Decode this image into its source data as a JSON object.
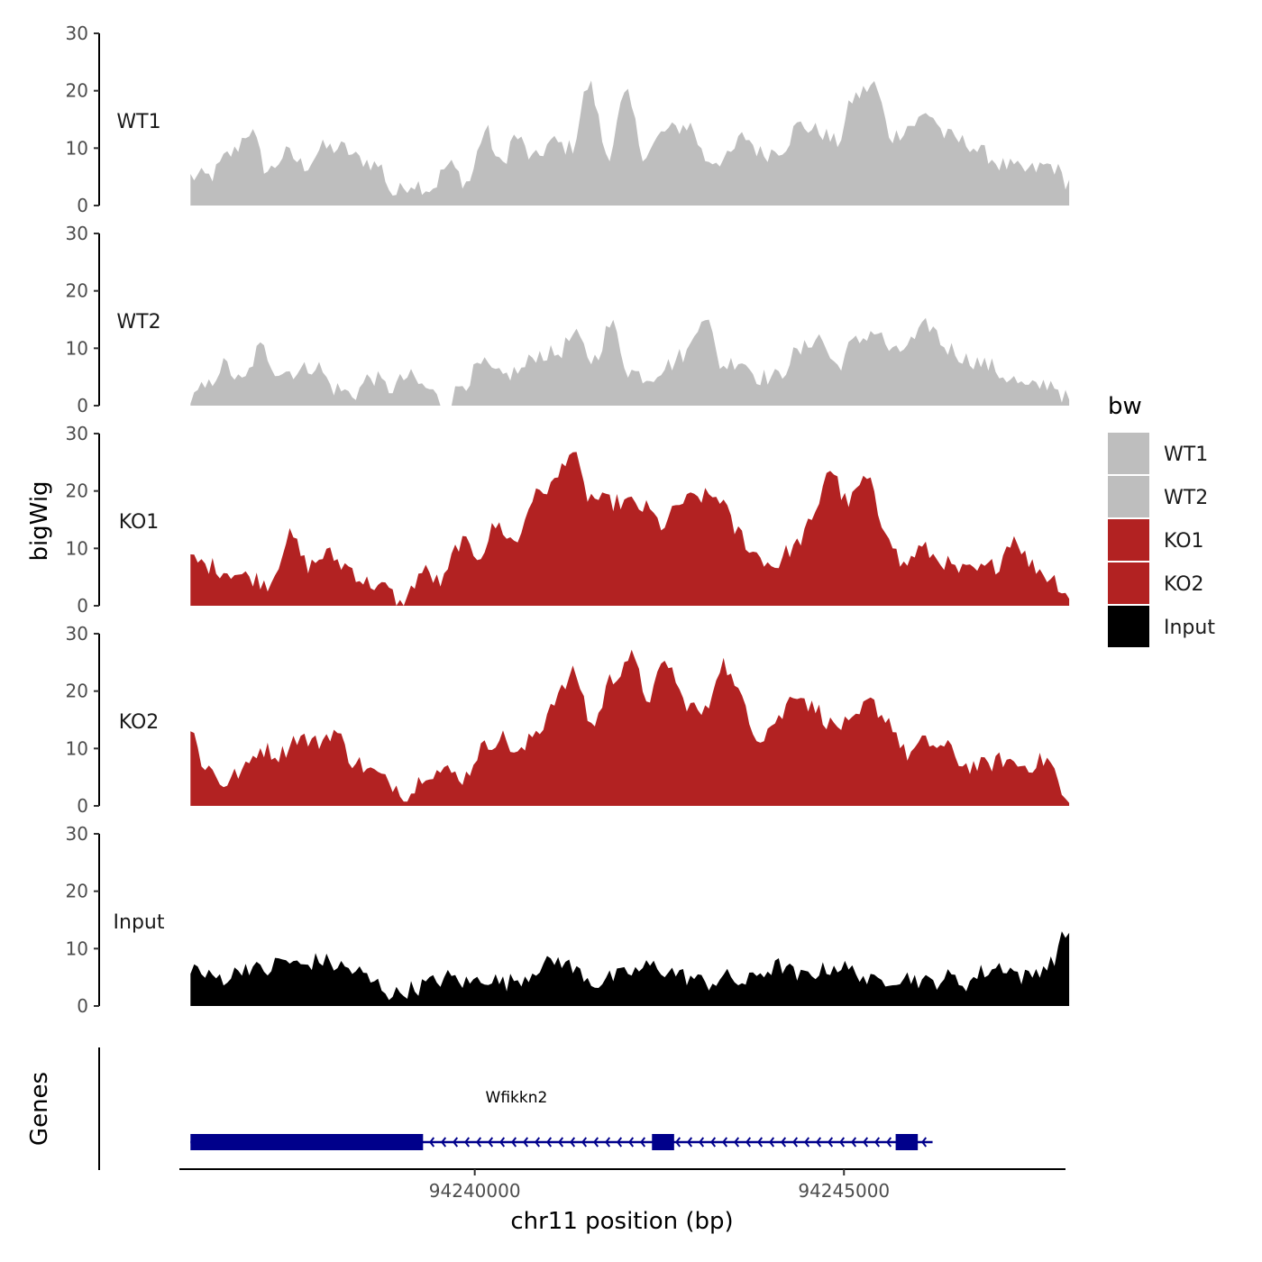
{
  "chart_data": {
    "type": "area",
    "ylabel": "bigWig",
    "xlabel": "chr11 position (bp)",
    "chromosome": "chr11",
    "xlim": [
      94236000,
      94248000
    ],
    "x_ticks": [
      94240000,
      94245000
    ],
    "x_tick_labels": [
      "94240000",
      "94245000"
    ],
    "ylim": [
      0,
      30
    ],
    "y_ticks": [
      0,
      10,
      20,
      30
    ],
    "legend": {
      "title": "bw",
      "position": "right",
      "entries": [
        {
          "label": "WT1",
          "color": "#bebebe"
        },
        {
          "label": "WT2",
          "color": "#bebebe"
        },
        {
          "label": "KO1",
          "color": "#b22222"
        },
        {
          "label": "KO2",
          "color": "#b22222"
        },
        {
          "label": "Input",
          "color": "#000000"
        }
      ]
    },
    "x_start": 94236150,
    "x_end": 94248050,
    "point_count": 240,
    "tracks": [
      {
        "name": "WT1",
        "color": "#bebebe",
        "anchors": [
          [
            94236150,
            5
          ],
          [
            94236400,
            5
          ],
          [
            94236700,
            9
          ],
          [
            94236950,
            13
          ],
          [
            94237200,
            6
          ],
          [
            94237450,
            9
          ],
          [
            94237700,
            7
          ],
          [
            94237950,
            10
          ],
          [
            94238200,
            10
          ],
          [
            94238450,
            8
          ],
          [
            94238700,
            7
          ],
          [
            94238900,
            2
          ],
          [
            94239150,
            4
          ],
          [
            94239400,
            3
          ],
          [
            94239650,
            7
          ],
          [
            94239900,
            4
          ],
          [
            94240150,
            13
          ],
          [
            94240350,
            7
          ],
          [
            94240550,
            12
          ],
          [
            94240800,
            8
          ],
          [
            94241050,
            11
          ],
          [
            94241300,
            10
          ],
          [
            94241550,
            21
          ],
          [
            94241800,
            9
          ],
          [
            94242050,
            19
          ],
          [
            94242300,
            9
          ],
          [
            94242600,
            13
          ],
          [
            94242900,
            14
          ],
          [
            94243150,
            8
          ],
          [
            94243400,
            8
          ],
          [
            94243650,
            12
          ],
          [
            94243900,
            9
          ],
          [
            94244150,
            10
          ],
          [
            94244400,
            14
          ],
          [
            94244650,
            13
          ],
          [
            94244900,
            11
          ],
          [
            94245150,
            19
          ],
          [
            94245400,
            21
          ],
          [
            94245650,
            12
          ],
          [
            94245900,
            14
          ],
          [
            94246150,
            16
          ],
          [
            94246400,
            12
          ],
          [
            94246650,
            11
          ],
          [
            94246900,
            9
          ],
          [
            94247150,
            7
          ],
          [
            94247450,
            6
          ],
          [
            94247800,
            7
          ],
          [
            94248050,
            4
          ]
        ]
      },
      {
        "name": "WT2",
        "color": "#bebebe",
        "anchors": [
          [
            94236150,
            1
          ],
          [
            94236350,
            3
          ],
          [
            94236600,
            7
          ],
          [
            94236850,
            4
          ],
          [
            94237100,
            10
          ],
          [
            94237350,
            6
          ],
          [
            94237600,
            6
          ],
          [
            94237850,
            7
          ],
          [
            94238100,
            3
          ],
          [
            94238350,
            2
          ],
          [
            94238600,
            5
          ],
          [
            94238850,
            3
          ],
          [
            94239100,
            5
          ],
          [
            94239350,
            3
          ],
          [
            94239600,
            0
          ],
          [
            94239850,
            4
          ],
          [
            94240100,
            7
          ],
          [
            94240350,
            5
          ],
          [
            94240600,
            6
          ],
          [
            94240850,
            9
          ],
          [
            94241100,
            9
          ],
          [
            94241350,
            12
          ],
          [
            94241600,
            8
          ],
          [
            94241850,
            14
          ],
          [
            94242100,
            6
          ],
          [
            94242350,
            5
          ],
          [
            94242600,
            7
          ],
          [
            94242850,
            9
          ],
          [
            94243100,
            16
          ],
          [
            94243350,
            7
          ],
          [
            94243600,
            8
          ],
          [
            94243850,
            5
          ],
          [
            94244100,
            5
          ],
          [
            94244350,
            9
          ],
          [
            94244650,
            12
          ],
          [
            94244900,
            7
          ],
          [
            94245150,
            11
          ],
          [
            94245400,
            13
          ],
          [
            94245700,
            9
          ],
          [
            94245900,
            11
          ],
          [
            94246150,
            14
          ],
          [
            94246400,
            10
          ],
          [
            94246700,
            8
          ],
          [
            94246950,
            7
          ],
          [
            94247200,
            5
          ],
          [
            94247500,
            3
          ],
          [
            94247800,
            4
          ],
          [
            94248050,
            1
          ]
        ]
      },
      {
        "name": "KO1",
        "color": "#b22222",
        "anchors": [
          [
            94236150,
            8
          ],
          [
            94236400,
            7
          ],
          [
            94236650,
            6
          ],
          [
            94236950,
            5
          ],
          [
            94237200,
            4
          ],
          [
            94237500,
            12
          ],
          [
            94237750,
            7
          ],
          [
            94238000,
            9
          ],
          [
            94238250,
            7
          ],
          [
            94238550,
            4
          ],
          [
            94238800,
            3
          ],
          [
            94239000,
            0
          ],
          [
            94239300,
            6
          ],
          [
            94239550,
            4
          ],
          [
            94239800,
            11
          ],
          [
            94240050,
            9
          ],
          [
            94240300,
            14
          ],
          [
            94240550,
            11
          ],
          [
            94240800,
            19
          ],
          [
            94241050,
            21
          ],
          [
            94241300,
            27
          ],
          [
            94241550,
            19
          ],
          [
            94241800,
            18
          ],
          [
            94242050,
            18
          ],
          [
            94242300,
            17
          ],
          [
            94242550,
            14
          ],
          [
            94242800,
            18
          ],
          [
            94243050,
            19
          ],
          [
            94243300,
            19
          ],
          [
            94243550,
            13
          ],
          [
            94243800,
            9
          ],
          [
            94244050,
            7
          ],
          [
            94244300,
            10
          ],
          [
            94244550,
            14
          ],
          [
            94244800,
            24
          ],
          [
            94245050,
            18
          ],
          [
            94245300,
            22
          ],
          [
            94245550,
            14
          ],
          [
            94245800,
            7
          ],
          [
            94246050,
            10
          ],
          [
            94246300,
            8
          ],
          [
            94246550,
            6
          ],
          [
            94246800,
            6
          ],
          [
            94247050,
            7
          ],
          [
            94247300,
            12
          ],
          [
            94247550,
            7
          ],
          [
            94247800,
            5
          ],
          [
            94248050,
            2
          ]
        ]
      },
      {
        "name": "KO2",
        "color": "#b22222",
        "anchors": [
          [
            94236150,
            13
          ],
          [
            94236350,
            7
          ],
          [
            94236600,
            4
          ],
          [
            94236850,
            6
          ],
          [
            94237100,
            10
          ],
          [
            94237350,
            9
          ],
          [
            94237600,
            12
          ],
          [
            94237850,
            11
          ],
          [
            94238100,
            13
          ],
          [
            94238350,
            8
          ],
          [
            94238600,
            6
          ],
          [
            94238850,
            4
          ],
          [
            94239100,
            2
          ],
          [
            94239350,
            6
          ],
          [
            94239600,
            6
          ],
          [
            94239850,
            5
          ],
          [
            94240100,
            10
          ],
          [
            94240350,
            12
          ],
          [
            94240600,
            9
          ],
          [
            94240850,
            13
          ],
          [
            94241100,
            19
          ],
          [
            94241350,
            23
          ],
          [
            94241600,
            14
          ],
          [
            94241850,
            22
          ],
          [
            94242100,
            26
          ],
          [
            94242350,
            19
          ],
          [
            94242600,
            25
          ],
          [
            94242850,
            18
          ],
          [
            94243100,
            16
          ],
          [
            94243350,
            25
          ],
          [
            94243600,
            19
          ],
          [
            94243850,
            12
          ],
          [
            94244100,
            15
          ],
          [
            94244350,
            20
          ],
          [
            94244600,
            17
          ],
          [
            94244850,
            14
          ],
          [
            94245100,
            14
          ],
          [
            94245350,
            18
          ],
          [
            94245600,
            15
          ],
          [
            94245850,
            9
          ],
          [
            94246100,
            11
          ],
          [
            94246400,
            10
          ],
          [
            94246650,
            7
          ],
          [
            94246900,
            7
          ],
          [
            94247150,
            8
          ],
          [
            94247450,
            7
          ],
          [
            94247750,
            8
          ],
          [
            94248050,
            0
          ]
        ]
      },
      {
        "name": "Input",
        "color": "#000000",
        "anchors": [
          [
            94236150,
            7
          ],
          [
            94236400,
            5
          ],
          [
            94236650,
            5
          ],
          [
            94236900,
            7
          ],
          [
            94237150,
            6
          ],
          [
            94237400,
            8
          ],
          [
            94237650,
            7
          ],
          [
            94237900,
            8
          ],
          [
            94238150,
            7
          ],
          [
            94238400,
            6
          ],
          [
            94238650,
            4
          ],
          [
            94238900,
            2
          ],
          [
            94239150,
            3
          ],
          [
            94239400,
            4
          ],
          [
            94239650,
            5
          ],
          [
            94239900,
            4
          ],
          [
            94240150,
            5
          ],
          [
            94240400,
            4
          ],
          [
            94240650,
            5
          ],
          [
            94240900,
            7
          ],
          [
            94241150,
            8
          ],
          [
            94241400,
            6
          ],
          [
            94241650,
            4
          ],
          [
            94241900,
            5
          ],
          [
            94242150,
            6
          ],
          [
            94242400,
            7
          ],
          [
            94242650,
            6
          ],
          [
            94242900,
            5
          ],
          [
            94243150,
            4
          ],
          [
            94243400,
            5
          ],
          [
            94243650,
            4
          ],
          [
            94243900,
            6
          ],
          [
            94244150,
            7
          ],
          [
            94244400,
            5
          ],
          [
            94244650,
            6
          ],
          [
            94244900,
            7
          ],
          [
            94245150,
            6
          ],
          [
            94245400,
            4
          ],
          [
            94245650,
            5
          ],
          [
            94245900,
            5
          ],
          [
            94246150,
            4
          ],
          [
            94246400,
            5
          ],
          [
            94246650,
            4
          ],
          [
            94246900,
            6
          ],
          [
            94247150,
            7
          ],
          [
            94247450,
            5
          ],
          [
            94247750,
            7
          ],
          [
            94248050,
            13
          ]
        ]
      }
    ],
    "genes_track": {
      "label": "Genes",
      "genes": [
        {
          "name": "Wfikkn2",
          "strand": "-",
          "start": 94236150,
          "end": 94246200,
          "exons": [
            [
              94236150,
              94239300
            ],
            [
              94242400,
              94242700
            ],
            [
              94245700,
              94246000
            ]
          ]
        }
      ]
    }
  }
}
